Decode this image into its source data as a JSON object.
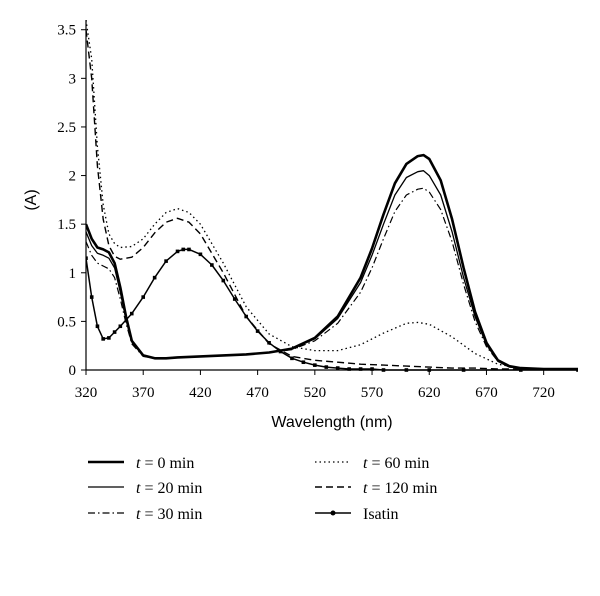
{
  "chart_data": {
    "type": "line",
    "title": "",
    "xlabel": "Wavelength (nm)",
    "ylabel": "(A)",
    "xlim": [
      320,
      750
    ],
    "ylim": [
      0,
      3.6
    ],
    "x_ticks": [
      "320",
      "370",
      "420",
      "470",
      "520",
      "570",
      "620",
      "670",
      "720"
    ],
    "y_ticks": [
      "0",
      "0.5",
      "1",
      "1.5",
      "2",
      "2.5",
      "3",
      "3.5"
    ],
    "grid": false,
    "legend_position": "bottom",
    "series": [
      {
        "name": "t = 0 min",
        "legend_var": "t",
        "legend_rest": " = 0 min",
        "style": "thick",
        "x": [
          320,
          325,
          330,
          335,
          340,
          345,
          350,
          355,
          360,
          370,
          380,
          390,
          400,
          420,
          440,
          460,
          480,
          500,
          520,
          540,
          560,
          570,
          580,
          590,
          600,
          610,
          615,
          620,
          630,
          640,
          650,
          660,
          670,
          680,
          690,
          700,
          720,
          750
        ],
        "y": [
          1.5,
          1.35,
          1.26,
          1.24,
          1.21,
          1.1,
          0.85,
          0.55,
          0.3,
          0.15,
          0.12,
          0.12,
          0.13,
          0.14,
          0.15,
          0.16,
          0.18,
          0.22,
          0.33,
          0.55,
          0.95,
          1.25,
          1.6,
          1.92,
          2.12,
          2.2,
          2.21,
          2.17,
          1.95,
          1.55,
          1.05,
          0.6,
          0.28,
          0.1,
          0.04,
          0.02,
          0.01,
          0.01
        ]
      },
      {
        "name": "t = 20 min",
        "legend_var": "t",
        "legend_rest": " = 20 min",
        "style": "thin",
        "x": [
          320,
          325,
          330,
          335,
          340,
          345,
          350,
          355,
          360,
          370,
          380,
          390,
          400,
          420,
          440,
          460,
          480,
          500,
          520,
          540,
          560,
          570,
          580,
          590,
          600,
          610,
          615,
          620,
          630,
          640,
          650,
          660,
          670,
          680,
          690,
          700,
          720,
          750
        ],
        "y": [
          1.42,
          1.28,
          1.2,
          1.18,
          1.15,
          1.05,
          0.8,
          0.52,
          0.29,
          0.15,
          0.12,
          0.12,
          0.13,
          0.14,
          0.15,
          0.16,
          0.18,
          0.22,
          0.32,
          0.53,
          0.9,
          1.18,
          1.5,
          1.8,
          1.98,
          2.04,
          2.05,
          2.0,
          1.8,
          1.42,
          0.95,
          0.55,
          0.26,
          0.09,
          0.03,
          0.02,
          0.01,
          0.01
        ]
      },
      {
        "name": "t = 30 min",
        "legend_var": "t",
        "legend_rest": " = 30 min",
        "style": "dashdot",
        "x": [
          320,
          325,
          330,
          335,
          340,
          345,
          350,
          355,
          360,
          370,
          380,
          390,
          400,
          420,
          440,
          460,
          480,
          500,
          520,
          540,
          560,
          570,
          580,
          590,
          600,
          610,
          615,
          620,
          630,
          640,
          650,
          660,
          670,
          680,
          690,
          700,
          720,
          750
        ],
        "y": [
          1.32,
          1.18,
          1.1,
          1.07,
          1.04,
          0.95,
          0.73,
          0.48,
          0.27,
          0.14,
          0.12,
          0.12,
          0.13,
          0.14,
          0.15,
          0.16,
          0.18,
          0.21,
          0.3,
          0.48,
          0.8,
          1.05,
          1.35,
          1.63,
          1.8,
          1.86,
          1.87,
          1.83,
          1.65,
          1.32,
          0.88,
          0.5,
          0.24,
          0.09,
          0.03,
          0.02,
          0.01,
          0.01
        ]
      },
      {
        "name": "t = 60 min",
        "legend_var": "t",
        "legend_rest": " = 60 min",
        "style": "dotted",
        "x": [
          320,
          325,
          330,
          335,
          340,
          345,
          350,
          360,
          370,
          380,
          390,
          400,
          410,
          420,
          440,
          460,
          480,
          500,
          520,
          540,
          560,
          580,
          600,
          610,
          620,
          640,
          660,
          680,
          700,
          720,
          750
        ],
        "y": [
          3.6,
          3.2,
          2.3,
          1.7,
          1.4,
          1.3,
          1.26,
          1.27,
          1.35,
          1.5,
          1.62,
          1.66,
          1.62,
          1.5,
          1.1,
          0.65,
          0.37,
          0.24,
          0.2,
          0.2,
          0.26,
          0.38,
          0.48,
          0.49,
          0.47,
          0.34,
          0.17,
          0.06,
          0.02,
          0.01,
          0.01
        ]
      },
      {
        "name": "t = 120 min",
        "legend_var": "t",
        "legend_rest": " = 120 min",
        "style": "dashed",
        "x": [
          320,
          325,
          330,
          335,
          340,
          345,
          350,
          360,
          370,
          380,
          390,
          400,
          410,
          420,
          440,
          460,
          480,
          500,
          520,
          540,
          560,
          580,
          600,
          620,
          640,
          660,
          680,
          700,
          750
        ],
        "y": [
          3.5,
          3.0,
          2.1,
          1.55,
          1.28,
          1.17,
          1.14,
          1.16,
          1.26,
          1.41,
          1.52,
          1.56,
          1.52,
          1.4,
          1.0,
          0.55,
          0.27,
          0.14,
          0.1,
          0.08,
          0.06,
          0.05,
          0.04,
          0.03,
          0.02,
          0.02,
          0.01,
          0.01,
          0.01
        ]
      },
      {
        "name": "Isatin",
        "legend_var": "",
        "legend_rest": "Isatin",
        "style": "marker",
        "x": [
          320,
          325,
          330,
          335,
          340,
          345,
          350,
          360,
          370,
          380,
          390,
          400,
          405,
          410,
          420,
          430,
          440,
          450,
          460,
          470,
          480,
          490,
          500,
          510,
          520,
          530,
          540,
          550,
          560,
          570,
          580,
          600,
          620,
          650,
          700,
          750
        ],
        "y": [
          1.15,
          0.75,
          0.45,
          0.32,
          0.33,
          0.39,
          0.45,
          0.58,
          0.75,
          0.95,
          1.12,
          1.22,
          1.24,
          1.24,
          1.19,
          1.08,
          0.92,
          0.73,
          0.55,
          0.4,
          0.28,
          0.19,
          0.12,
          0.08,
          0.05,
          0.03,
          0.02,
          0.01,
          0.01,
          0.01,
          0.0,
          0.0,
          0.0,
          0.0,
          0.0,
          0.0
        ]
      }
    ]
  }
}
